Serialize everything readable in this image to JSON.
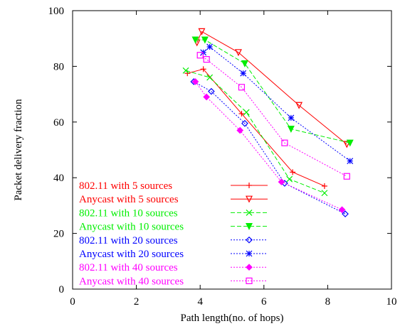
{
  "chart_data": {
    "type": "line",
    "xlabel": "Path length(no. of hops)",
    "ylabel": "Packet delivery fraction",
    "xlim": [
      0,
      10
    ],
    "ylim": [
      0,
      100
    ],
    "xticks": [
      "0",
      "2",
      "4",
      "6",
      "8",
      "10"
    ],
    "yticks": [
      "0",
      "20",
      "40",
      "60",
      "80",
      "100"
    ],
    "legend_position": "bottom-left",
    "grid": false,
    "series": [
      {
        "name": "802.11 with 5 sources",
        "color": "#ff0000",
        "dash": "solid",
        "marker": "plus",
        "x": [
          3.6,
          4.1,
          5.3,
          6.9,
          7.9
        ],
        "y": [
          77.5,
          79,
          63,
          42,
          37
        ]
      },
      {
        "name": "Anycast with 5 sources",
        "color": "#ff0000",
        "dash": "solid",
        "marker": "triangle-down-open",
        "x": [
          3.9,
          4.05,
          5.2,
          7.1,
          8.6
        ],
        "y": [
          88.5,
          92.5,
          85,
          66,
          52
        ]
      },
      {
        "name": "802.11 with 10 sources",
        "color": "#00ee00",
        "dash": "dashed",
        "marker": "x",
        "x": [
          3.55,
          4.3,
          5.45,
          6.8,
          7.9
        ],
        "y": [
          78.5,
          76,
          63.5,
          39.5,
          34.5
        ]
      },
      {
        "name": "Anycast with 10 sources",
        "color": "#00ee00",
        "dash": "dashed",
        "marker": "triangle-down-filled",
        "x": [
          3.85,
          4.15,
          5.4,
          6.85,
          8.7
        ],
        "y": [
          89.5,
          89.5,
          81,
          57.5,
          52.5
        ]
      },
      {
        "name": "802.11 with 20 sources",
        "color": "#0000ff",
        "dash": "dotted",
        "marker": "diamond-open",
        "x": [
          3.8,
          4.35,
          5.4,
          6.65,
          8.55
        ],
        "y": [
          74.5,
          71,
          59.5,
          38,
          27
        ]
      },
      {
        "name": "Anycast with 20 sources",
        "color": "#0000ff",
        "dash": "dotted",
        "marker": "star",
        "x": [
          4.1,
          4.3,
          5.35,
          6.85,
          8.7
        ],
        "y": [
          85,
          87,
          77.5,
          61.5,
          46
        ]
      },
      {
        "name": "802.11 with 40 sources",
        "color": "#ff00ff",
        "dash": "dotted",
        "marker": "diamond-filled",
        "x": [
          3.85,
          4.2,
          5.25,
          6.55,
          8.45
        ],
        "y": [
          74.5,
          69,
          57,
          38.5,
          28.5
        ]
      },
      {
        "name": "Anycast with 40 sources",
        "color": "#ff00ff",
        "dash": "dotted",
        "marker": "square-open",
        "x": [
          4.0,
          4.2,
          5.3,
          6.65,
          8.6
        ],
        "y": [
          84,
          82.5,
          72.5,
          52.5,
          40.5
        ]
      }
    ]
  }
}
